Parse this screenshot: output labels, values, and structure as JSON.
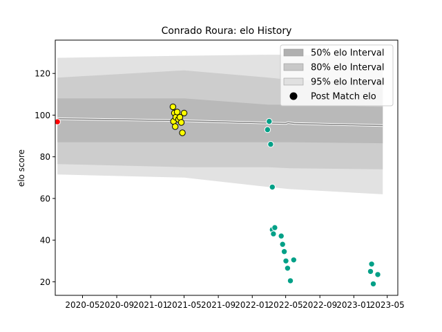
{
  "chart_data": {
    "type": "scatter",
    "title": "Conrado Roura: elo History",
    "xlabel": "",
    "ylabel": "elo score",
    "xlim": [
      "2020-01-24",
      "2023-06-08"
    ],
    "ylim": [
      13.5,
      136
    ],
    "grid": false,
    "legend_position": "top-right",
    "x_tick_labels": [
      "2020-05",
      "2020-09",
      "2021-01",
      "2021-05",
      "2021-09",
      "2022-01",
      "2022-05",
      "2022-09",
      "2023-01",
      "2023-05"
    ],
    "x_ticks": [
      "2020-05-01",
      "2020-09-01",
      "2021-01-01",
      "2021-05-01",
      "2021-09-01",
      "2022-01-01",
      "2022-05-01",
      "2022-09-01",
      "2023-01-01",
      "2023-05-01"
    ],
    "y_ticks": [
      20,
      40,
      60,
      80,
      100,
      120
    ],
    "legend": [
      {
        "label": "50% elo Interval",
        "kind": "patch",
        "color": "#b0b0b0"
      },
      {
        "label": "80% elo Interval",
        "kind": "patch",
        "color": "#c8c8c8"
      },
      {
        "label": "95% elo Interval",
        "kind": "patch",
        "color": "#e0e0e0"
      },
      {
        "label": "Post Match elo",
        "kind": "marker",
        "color": "#000000"
      }
    ],
    "bands": [
      {
        "name": "95% elo Interval",
        "color": "#e2e2e2",
        "x": [
          "2020-02-01",
          "2021-05-01",
          "2022-03-01",
          "2022-05-15",
          "2023-04-15"
        ],
        "upper": [
          127.5,
          128.5,
          129,
          129,
          128
        ],
        "lower": [
          71.5,
          70,
          65.5,
          64.5,
          62
        ]
      },
      {
        "name": "80% elo Interval",
        "color": "#cdcdcd",
        "x": [
          "2020-02-01",
          "2021-05-01",
          "2022-03-01",
          "2022-05-15",
          "2023-04-15"
        ],
        "upper": [
          118,
          121.5,
          118,
          117,
          116
        ],
        "lower": [
          76.5,
          75,
          75,
          74.5,
          74
        ]
      },
      {
        "name": "50% elo Interval",
        "color": "#b9b9b9",
        "x": [
          "2020-02-01",
          "2021-05-01",
          "2022-03-01",
          "2022-05-15",
          "2023-04-15"
        ],
        "upper": [
          108,
          108,
          105,
          105,
          104
        ],
        "lower": [
          87,
          87,
          87,
          87,
          86.5
        ]
      }
    ],
    "mean_line": {
      "color": "#808080",
      "x": [
        "2020-02-01",
        "2021-05-01",
        "2022-03-01",
        "2022-05-01",
        "2022-05-10",
        "2022-06-01",
        "2023-04-15"
      ],
      "y": [
        98.3,
        97.3,
        96.2,
        96.0,
        96.4,
        96.0,
        95.0
      ]
    },
    "series": [
      {
        "color": "#ff0000",
        "edge": "#ffffff",
        "points": [
          [
            "2020-02-01",
            96.8
          ]
        ]
      },
      {
        "color": "#ffff00",
        "edge": "#000000",
        "points": [
          [
            "2021-03-22",
            104
          ],
          [
            "2021-03-24",
            97
          ],
          [
            "2021-03-27",
            101
          ],
          [
            "2021-03-30",
            94.5
          ],
          [
            "2021-04-01",
            99
          ],
          [
            "2021-04-06",
            101.5
          ],
          [
            "2021-04-11",
            98
          ],
          [
            "2021-04-16",
            99
          ],
          [
            "2021-04-21",
            96.5
          ],
          [
            "2021-04-25",
            91.5
          ],
          [
            "2021-05-01",
            101
          ]
        ]
      },
      {
        "color": "#00a087",
        "edge": "#ffffff",
        "points": [
          [
            "2022-02-25",
            93
          ],
          [
            "2022-03-03",
            97
          ],
          [
            "2022-03-08",
            86
          ],
          [
            "2022-03-14",
            65.5
          ],
          [
            "2022-03-14",
            45
          ],
          [
            "2022-03-18",
            43
          ],
          [
            "2022-03-23",
            46
          ],
          [
            "2022-04-15",
            42
          ],
          [
            "2022-04-20",
            38
          ],
          [
            "2022-04-26",
            34.5
          ],
          [
            "2022-05-02",
            30
          ],
          [
            "2022-05-08",
            26.5
          ],
          [
            "2022-05-18",
            20.5
          ],
          [
            "2022-05-30",
            30.5
          ],
          [
            "2023-03-02",
            25
          ],
          [
            "2023-03-06",
            28.5
          ],
          [
            "2023-03-12",
            19
          ],
          [
            "2023-03-28",
            23.5
          ]
        ]
      }
    ]
  }
}
